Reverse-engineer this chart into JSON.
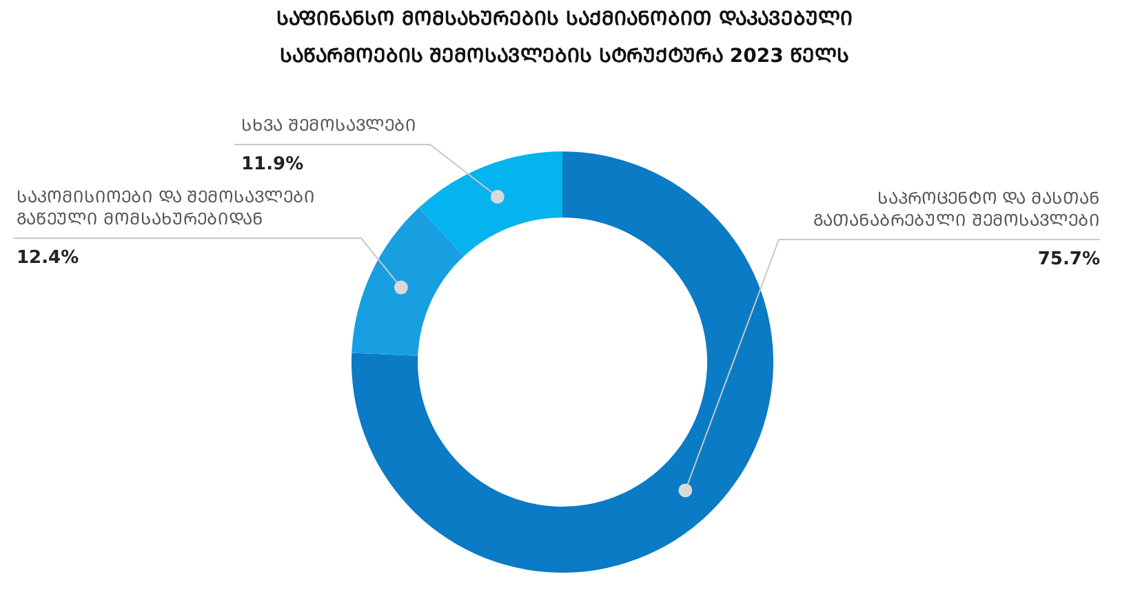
{
  "chart_data": {
    "type": "donut",
    "title": "ᲡᲐᲤᲘᲜᲐᲜᲡᲝ ᲛᲝᲛᲡᲐᲮᲣᲠᲔᲑᲘᲡ ᲡᲐᲥᲛᲘᲐᲜᲝᲑᲘᲗ ᲓᲐᲙᲐᲕᲔᲑᲣᲚᲘ ᲡᲐᲬᲐᲠᲛᲝᲔᲑᲘᲡ ᲨᲔᲛᲝᲡᲐᲕᲚᲔᲑᲘᲡ ᲡᲢᲠᲣᲥᲢᲣᲠᲐ 2023 ᲬᲔᲚᲡ",
    "categories": [
      "ᲡᲐᲞᲠᲝᲪᲔᲜᲢᲝ ᲓᲐ ᲛᲐᲡᲗᲐᲜ ᲒᲐᲗᲐᲜᲐᲑᲠᲔᲑᲣᲚᲘ ᲨᲔᲛᲝᲡᲐᲕᲚᲔᲑᲘ",
      "ᲡᲐᲙᲝᲛᲘᲡᲘᲝᲔᲑᲘ ᲓᲐ ᲨᲔᲛᲝᲡᲐᲕᲚᲔᲑᲘ ᲒᲐᲬᲔᲣᲚᲘ ᲛᲝᲛᲡᲐᲮᲣᲠᲔᲑᲘᲓᲐᲜ",
      "ᲡᲮᲕᲐ ᲨᲔᲛᲝᲡᲐᲕᲚᲔᲑᲘ"
    ],
    "values": [
      75.7,
      12.4,
      11.9
    ],
    "colors": [
      "#0a7bc4",
      "#189fe2",
      "#05b3ee"
    ],
    "value_labels": [
      "75.7%",
      "12.4%",
      "11.9%"
    ]
  }
}
